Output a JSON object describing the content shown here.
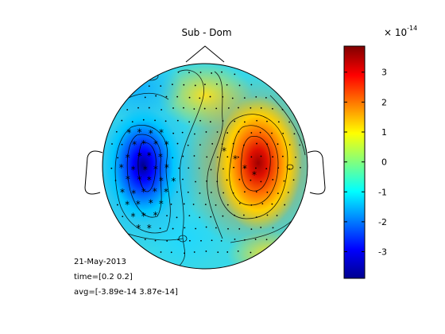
{
  "chart_data": [
    {
      "type": "heatmap",
      "subtype": "topographic scalp map",
      "title": "Sub - Dom",
      "colorbar": {
        "colormap": "jet",
        "range": [
          -3.89,
          3.87
        ],
        "ticks": [
          3,
          2,
          1,
          0,
          -1,
          -2,
          -3
        ],
        "tick_labels": [
          "3",
          "2",
          "1",
          "0",
          "-1",
          "-2",
          "-3"
        ],
        "exponent_label": "× 10",
        "exponent_power": "-14"
      },
      "extrema": [
        {
          "kind": "min",
          "region": "left central",
          "value": -3.89
        },
        {
          "kind": "max",
          "region": "right central",
          "value": 3.87
        }
      ],
      "markers": {
        "electrode": "dot",
        "significant": "asterisk"
      },
      "annotations": {
        "date": "21-May-2013",
        "time": "time=[0.2 0.2]",
        "avg": "avg=[-3.89e-14 3.87e-14]"
      }
    }
  ]
}
